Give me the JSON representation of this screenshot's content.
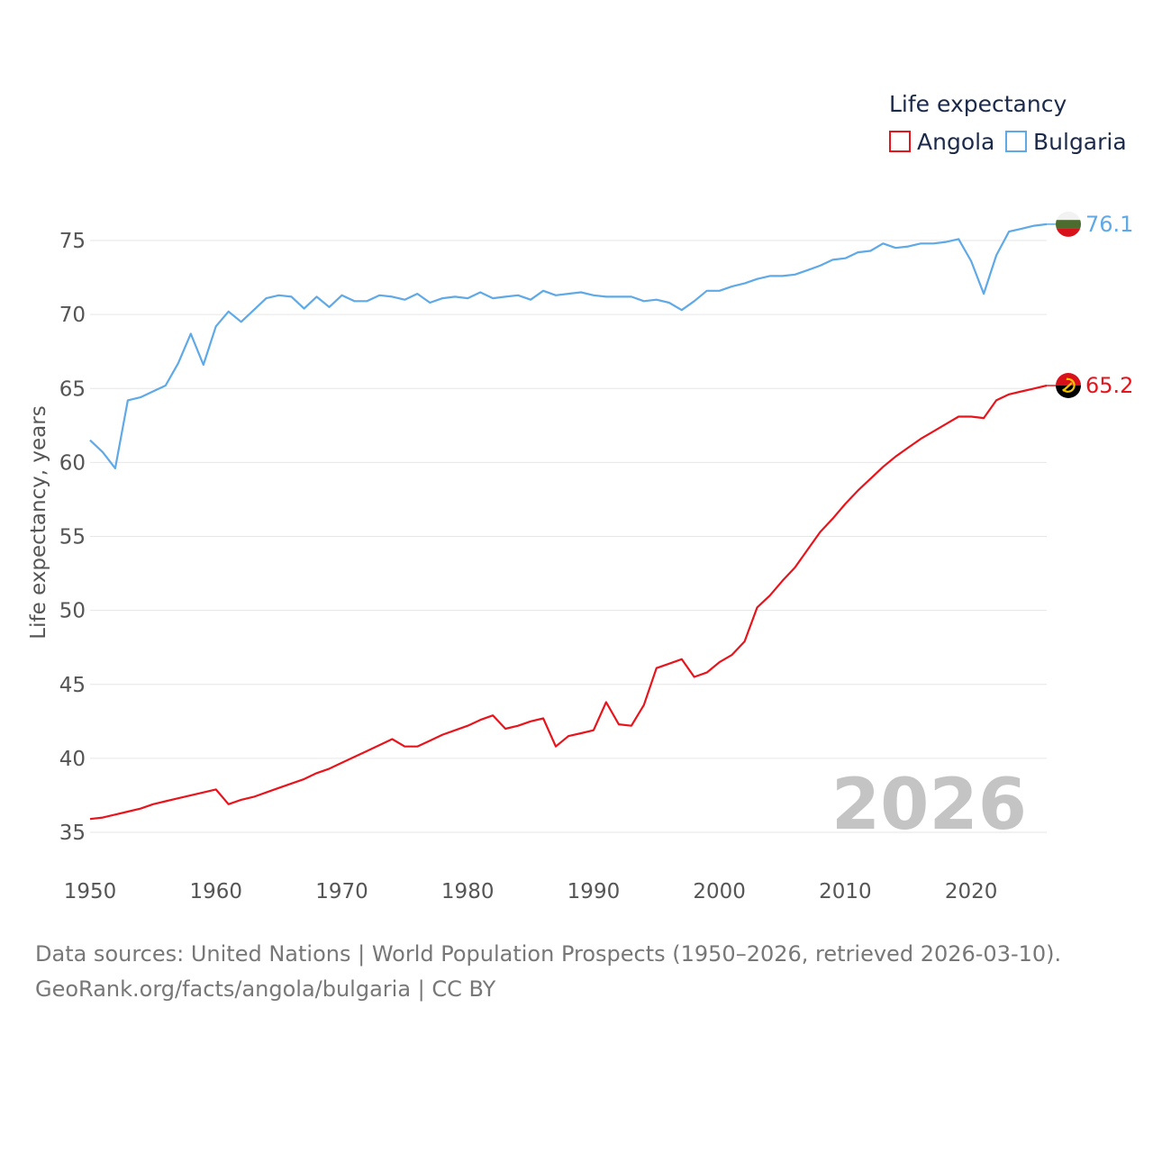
{
  "chart_data": {
    "type": "line",
    "legend_title": "Life expectancy",
    "ylabel": "Life expectancy, years",
    "xlim": [
      1950,
      2026
    ],
    "ylim": [
      33,
      78
    ],
    "xticks": [
      1950,
      1960,
      1970,
      1980,
      1990,
      2000,
      2010,
      2020
    ],
    "yticks": [
      35,
      40,
      45,
      50,
      55,
      60,
      65,
      70,
      75
    ],
    "current_year": "2026",
    "series": [
      {
        "name": "Angola",
        "color": "#e8141c",
        "final_label": "65.2",
        "flag": "angola-flag",
        "x": [
          1950,
          1951,
          1952,
          1953,
          1954,
          1955,
          1956,
          1957,
          1958,
          1959,
          1960,
          1961,
          1962,
          1963,
          1964,
          1965,
          1966,
          1967,
          1968,
          1969,
          1970,
          1971,
          1972,
          1973,
          1974,
          1975,
          1976,
          1977,
          1978,
          1979,
          1980,
          1981,
          1982,
          1983,
          1984,
          1985,
          1986,
          1987,
          1988,
          1989,
          1990,
          1991,
          1992,
          1993,
          1994,
          1995,
          1996,
          1997,
          1998,
          1999,
          2000,
          2001,
          2002,
          2003,
          2004,
          2005,
          2006,
          2007,
          2008,
          2009,
          2010,
          2011,
          2012,
          2013,
          2014,
          2015,
          2016,
          2017,
          2018,
          2019,
          2020,
          2021,
          2022,
          2023,
          2024,
          2025,
          2026
        ],
        "values": [
          35.9,
          36.0,
          36.2,
          36.4,
          36.6,
          36.9,
          37.1,
          37.3,
          37.5,
          37.7,
          37.9,
          36.9,
          37.2,
          37.4,
          37.7,
          38.0,
          38.3,
          38.6,
          39.0,
          39.3,
          39.7,
          40.1,
          40.5,
          40.9,
          41.3,
          40.8,
          40.8,
          41.2,
          41.6,
          41.9,
          42.2,
          42.6,
          42.9,
          42.0,
          42.2,
          42.5,
          42.7,
          40.8,
          41.5,
          41.7,
          41.9,
          43.8,
          42.3,
          42.2,
          43.6,
          46.1,
          46.4,
          46.7,
          45.5,
          45.8,
          46.5,
          47.0,
          47.9,
          50.2,
          51.0,
          52.0,
          52.9,
          54.1,
          55.3,
          56.2,
          57.2,
          58.1,
          58.9,
          59.7,
          60.4,
          61.0,
          61.6,
          62.1,
          62.6,
          63.1,
          63.1,
          63.0,
          64.2,
          64.6,
          64.8,
          65.0,
          65.2
        ]
      },
      {
        "name": "Bulgaria",
        "color": "#5ea9e6",
        "final_label": "76.1",
        "flag": "bulgaria-flag",
        "x": [
          1950,
          1951,
          1952,
          1953,
          1954,
          1955,
          1956,
          1957,
          1958,
          1959,
          1960,
          1961,
          1962,
          1963,
          1964,
          1965,
          1966,
          1967,
          1968,
          1969,
          1970,
          1971,
          1972,
          1973,
          1974,
          1975,
          1976,
          1977,
          1978,
          1979,
          1980,
          1981,
          1982,
          1983,
          1984,
          1985,
          1986,
          1987,
          1988,
          1989,
          1990,
          1991,
          1992,
          1993,
          1994,
          1995,
          1996,
          1997,
          1998,
          1999,
          2000,
          2001,
          2002,
          2003,
          2004,
          2005,
          2006,
          2007,
          2008,
          2009,
          2010,
          2011,
          2012,
          2013,
          2014,
          2015,
          2016,
          2017,
          2018,
          2019,
          2020,
          2021,
          2022,
          2023,
          2024,
          2025,
          2026
        ],
        "values": [
          61.5,
          60.7,
          59.6,
          64.2,
          64.4,
          64.8,
          65.2,
          66.7,
          68.7,
          66.6,
          69.2,
          70.2,
          69.5,
          70.3,
          71.1,
          71.3,
          71.2,
          70.4,
          71.2,
          70.5,
          71.3,
          70.9,
          70.9,
          71.3,
          71.2,
          71.0,
          71.4,
          70.8,
          71.1,
          71.2,
          71.1,
          71.5,
          71.1,
          71.2,
          71.3,
          71.0,
          71.6,
          71.3,
          71.4,
          71.5,
          71.3,
          71.2,
          71.2,
          71.2,
          70.9,
          71.0,
          70.8,
          70.3,
          70.9,
          71.6,
          71.6,
          71.9,
          72.1,
          72.4,
          72.6,
          72.6,
          72.7,
          73.0,
          73.3,
          73.7,
          73.8,
          74.2,
          74.3,
          74.8,
          74.5,
          74.6,
          74.8,
          74.8,
          74.9,
          75.1,
          73.6,
          71.4,
          74.0,
          75.6,
          75.8,
          76.0,
          76.1
        ]
      }
    ]
  },
  "footer": {
    "line1": "Data sources: United Nations | World Population Prospects (1950–2026, retrieved 2026-03-10).",
    "line2": "GeoRank.org/facts/angola/bulgaria | CC BY"
  }
}
